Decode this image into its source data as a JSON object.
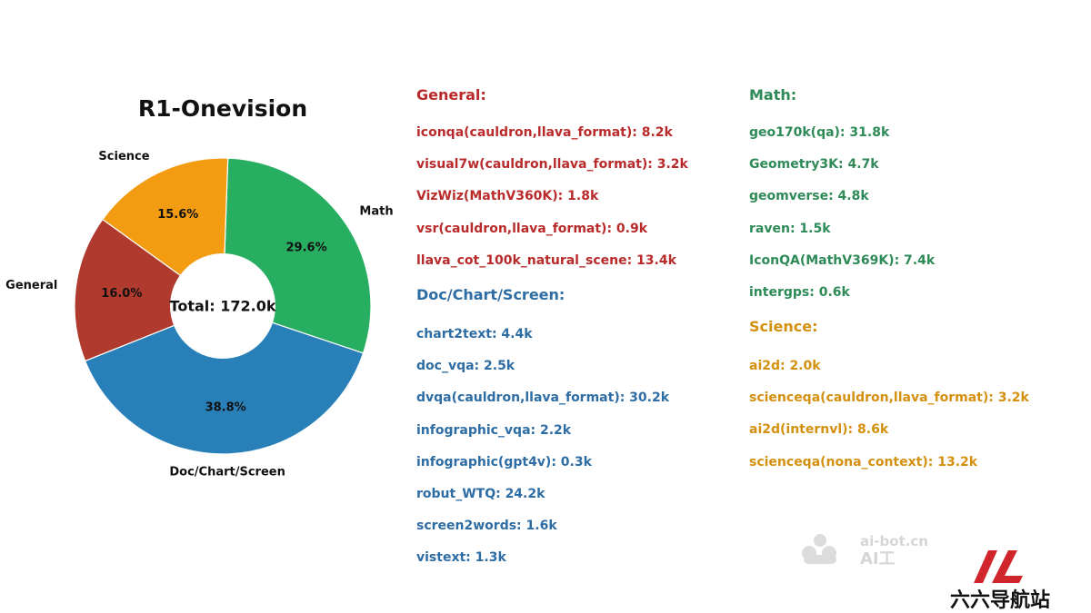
{
  "chart_data": {
    "type": "pie",
    "title": "R1-Onevision",
    "center_label": "Total: 172.0k",
    "donut": true,
    "slices": [
      {
        "label": "Math",
        "percent": 29.6,
        "percent_label": "29.6%",
        "color": "#27ae60"
      },
      {
        "label": "Doc/Chart/Screen",
        "percent": 38.8,
        "percent_label": "38.8%",
        "color": "#2980b9"
      },
      {
        "label": "General",
        "percent": 16.0,
        "percent_label": "16.0%",
        "color": "#b03a2e"
      },
      {
        "label": "Science",
        "percent": 15.6,
        "percent_label": "15.6%",
        "color": "#f39c12"
      }
    ]
  },
  "categories": {
    "general": {
      "heading": "General:",
      "color": "#b92b2b",
      "items": [
        "iconqa(cauldron,llava_format): 8.2k",
        "visual7w(cauldron,llava_format): 3.2k",
        "VizWiz(MathV360K): 1.8k",
        "vsr(cauldron,llava_format): 0.9k",
        "llava_cot_100k_natural_scene: 13.4k"
      ]
    },
    "doc": {
      "heading": "Doc/Chart/Screen:",
      "color": "#2e6da4",
      "items": [
        "chart2text: 4.4k",
        "doc_vqa: 2.5k",
        "dvqa(cauldron,llava_format): 30.2k",
        "infographic_vqa: 2.2k",
        "infographic(gpt4v): 0.3k",
        "robut_WTQ: 24.2k",
        "screen2words: 1.6k",
        "vistext: 1.3k"
      ]
    },
    "math": {
      "heading": "Math:",
      "color": "#2e8b57",
      "items": [
        "geo170k(qa): 31.8k",
        "Geometry3K: 4.7k",
        "geomverse: 4.8k",
        "raven: 1.5k",
        "IconQA(MathV369K): 7.4k",
        "intergps: 0.6k"
      ]
    },
    "science": {
      "heading": "Science:",
      "color": "#d4900f",
      "items": [
        "ai2d: 2.0k",
        "scienceqa(cauldron,llava_format): 3.2k",
        "ai2d(internvl): 8.6k",
        "scienceqa(nona_context): 13.2k"
      ]
    }
  },
  "watermark": {
    "site": "ai-bot.cn",
    "brand": "AI工",
    "logo_text": "六六导航站",
    "logo_color": "#d0262b"
  }
}
